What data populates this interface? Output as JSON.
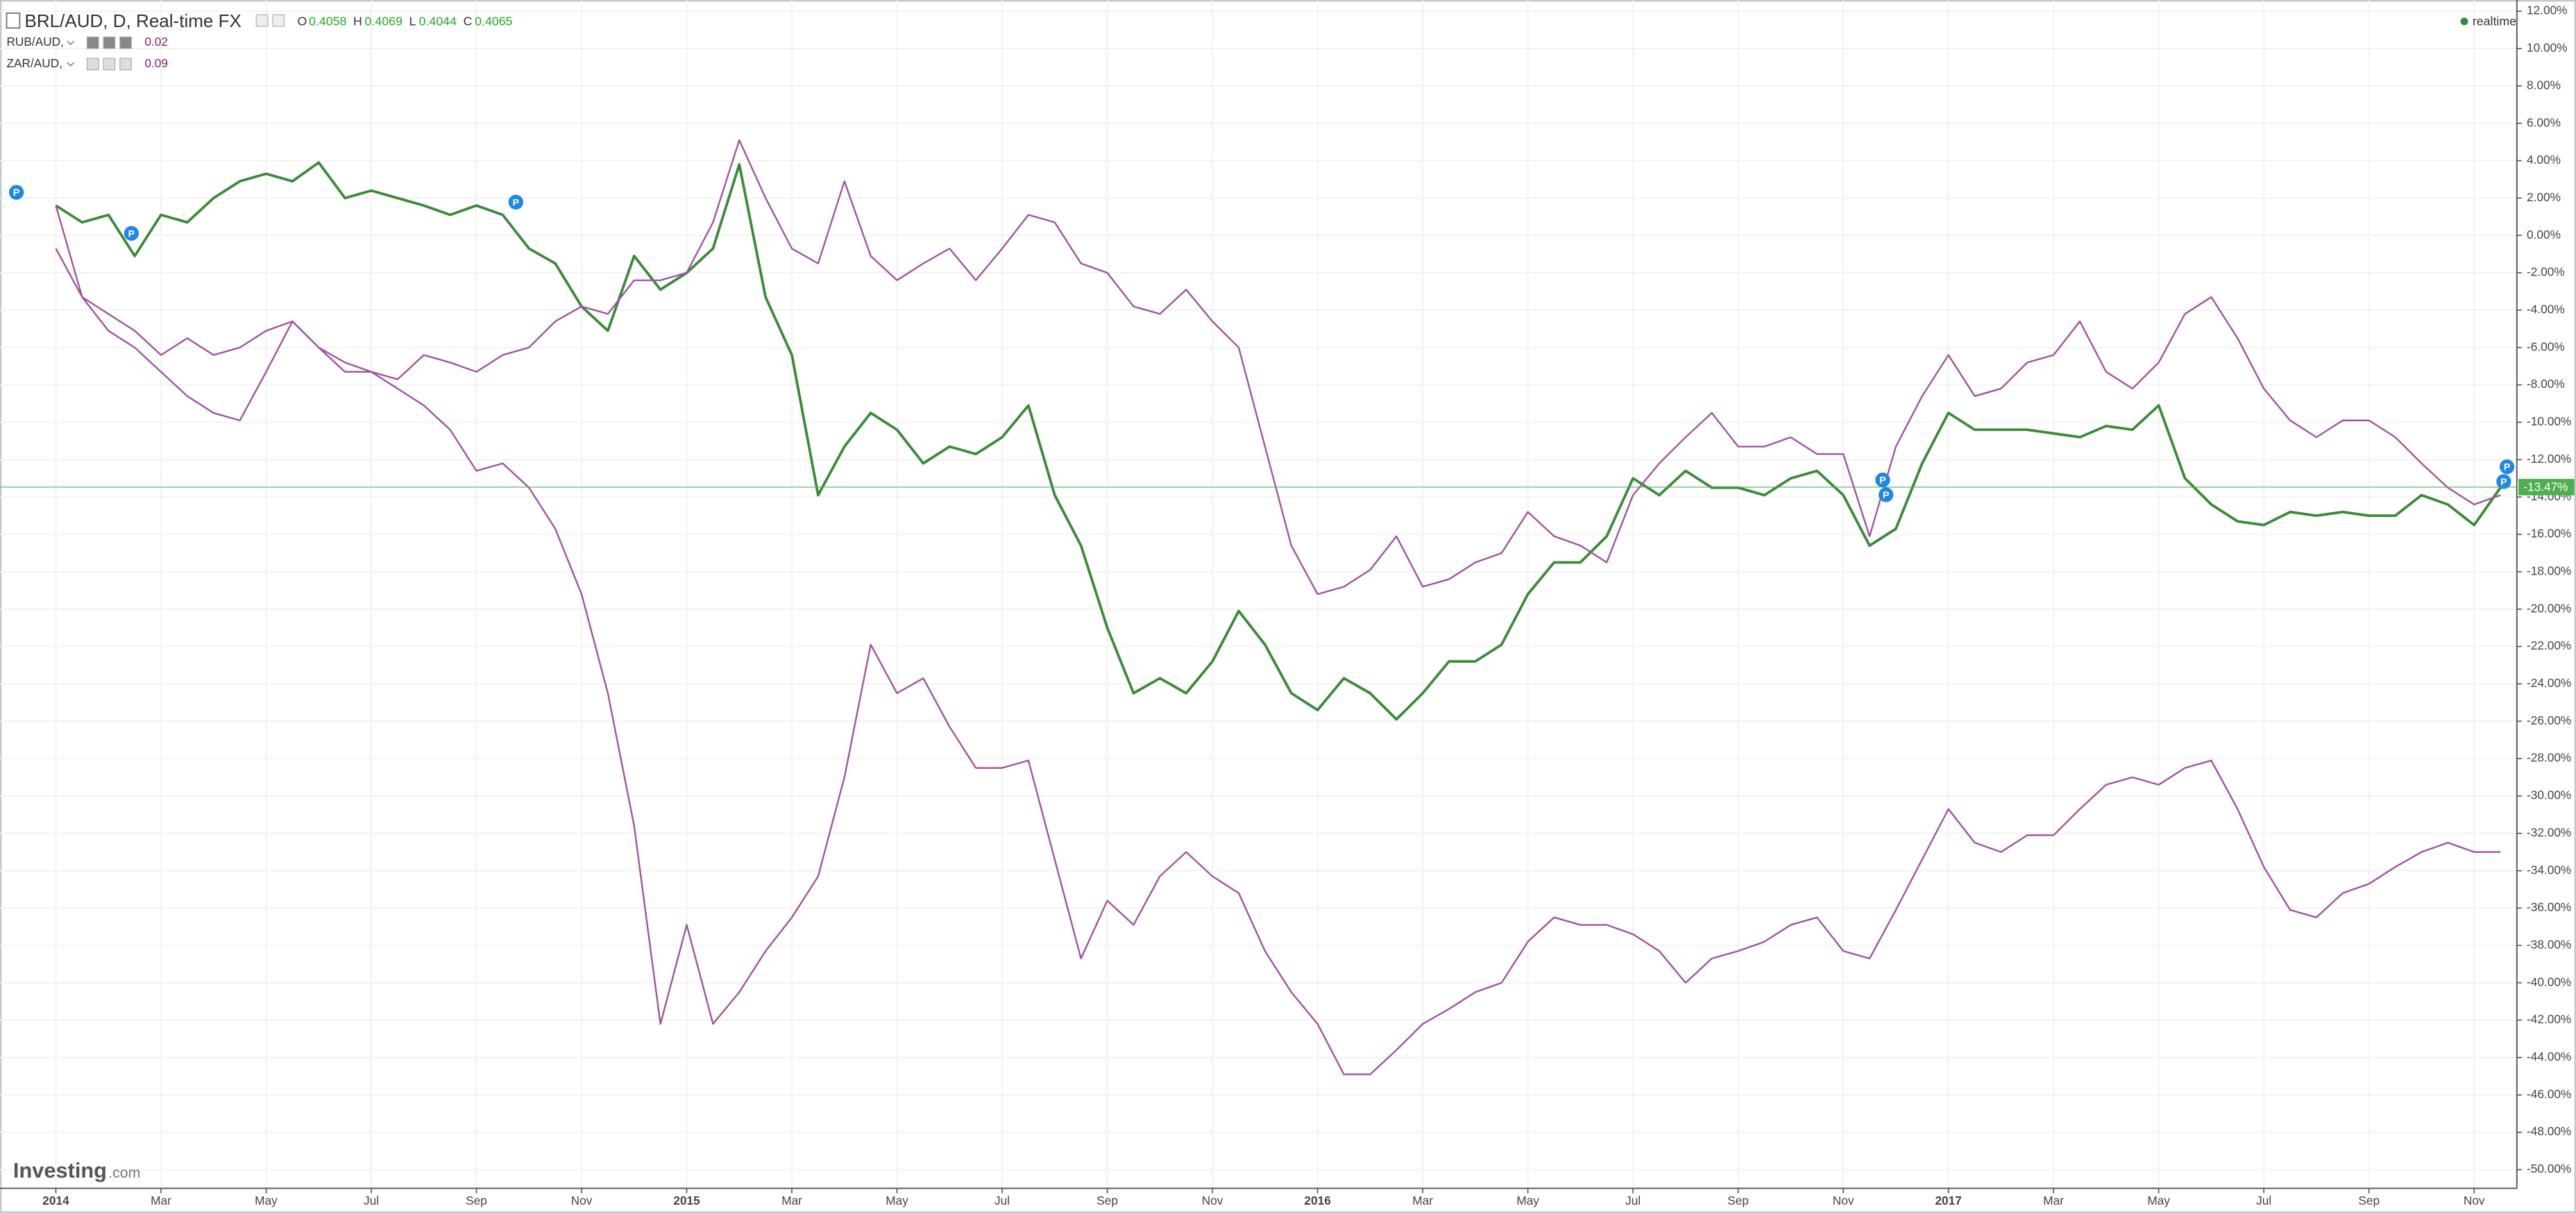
{
  "chart_data": {
    "type": "line",
    "header": {
      "title": "BRL/AUD, D, Real-time FX",
      "o_label": "O",
      "o_value": "0.4058",
      "h_label": "H",
      "h_value": "0.4069",
      "l_label": "L",
      "l_value": "0.4044",
      "c_label": "C",
      "c_value": "0.4065",
      "status": "realtime"
    },
    "studies": [
      {
        "name": "RUB/AUD,",
        "value": "0.02"
      },
      {
        "name": "ZAR/AUD,",
        "value": "0.09"
      }
    ],
    "logo_main": "Investing",
    "logo_suffix": ".com",
    "pin_label": "P",
    "last_value": -13.47,
    "last_label": "-13.47%",
    "last_color": "#4caf50",
    "categories": [
      "2014",
      null,
      null,
      null,
      "Mar",
      null,
      null,
      null,
      "May",
      null,
      null,
      null,
      "Jul",
      null,
      null,
      null,
      "Sep",
      null,
      null,
      null,
      "Nov",
      null,
      null,
      null,
      "2015",
      null,
      null,
      null,
      "Mar",
      null,
      null,
      null,
      "May",
      null,
      null,
      null,
      "Jul",
      null,
      null,
      null,
      "Sep",
      null,
      null,
      null,
      "Nov",
      null,
      null,
      null,
      "2016",
      null,
      null,
      null,
      "Mar",
      null,
      null,
      null,
      "May",
      null,
      null,
      null,
      "Jul",
      null,
      null,
      null,
      "Sep",
      null,
      null,
      null,
      "Nov",
      null,
      null,
      null,
      "2017",
      null,
      null,
      null,
      "Mar",
      null,
      null,
      null,
      "May",
      null,
      null,
      null,
      "Jul",
      null,
      null,
      null,
      "Sep",
      null,
      null,
      null,
      "Nov",
      null
    ],
    "series": [
      {
        "name": "BRL/AUD",
        "color": "#3b8a3b",
        "values": [
          1.6,
          0.7,
          1.1,
          -1.1,
          1.1,
          0.7,
          2.0,
          2.9,
          3.3,
          2.9,
          3.9,
          2.0,
          2.4,
          2.0,
          1.6,
          1.1,
          1.6,
          1.1,
          -0.7,
          -1.5,
          -3.8,
          -5.1,
          -1.1,
          -2.9,
          -2.0,
          -0.7,
          3.8,
          -3.3,
          -6.4,
          -13.9,
          -11.3,
          -9.5,
          -10.4,
          -12.2,
          -11.3,
          -11.7,
          -10.8,
          -9.1,
          -13.9,
          -16.6,
          -21.0,
          -24.5,
          -23.7,
          -24.5,
          -22.8,
          -20.1,
          -21.9,
          -24.5,
          -25.4,
          -23.7,
          -24.5,
          -25.9,
          -24.5,
          -22.8,
          -22.8,
          -21.9,
          -19.2,
          -17.5,
          -17.5,
          -16.1,
          -13.0,
          -13.9,
          -12.6,
          -13.5,
          -13.5,
          -13.9,
          -13.0,
          -12.6,
          -13.9,
          -16.6,
          -15.7,
          -12.2,
          -9.5,
          -10.4,
          -10.4,
          -10.4,
          -10.6,
          -10.8,
          -10.2,
          -10.4,
          -9.1,
          -13.0,
          -14.4,
          -15.3,
          -15.5,
          -14.8,
          -15.0,
          -14.8,
          -15.0,
          -15.0,
          -13.9,
          -14.4,
          -15.5,
          -13.5
        ]
      },
      {
        "name": "RUB/AUD",
        "color": "#a0529e",
        "values": [
          -0.7,
          -3.3,
          -5.1,
          -6.0,
          -7.3,
          -8.6,
          -9.5,
          -9.9,
          -7.3,
          -4.6,
          -6.0,
          -6.8,
          -7.3,
          -8.2,
          -9.1,
          -10.4,
          -12.6,
          -12.2,
          -13.5,
          -15.7,
          -19.2,
          -24.5,
          -31.6,
          -42.2,
          -36.9,
          -42.2,
          -40.5,
          -38.3,
          -36.5,
          -34.3,
          -29.0,
          -21.9,
          -24.5,
          -23.7,
          -26.3,
          -28.5,
          -28.5,
          -28.1,
          -33.4,
          -38.7,
          -35.6,
          -36.9,
          -34.3,
          -33.0,
          -34.3,
          -35.2,
          -38.3,
          -40.5,
          -42.2,
          -44.9,
          -44.9,
          -43.6,
          -42.2,
          -41.4,
          -40.5,
          -40.0,
          -37.8,
          -36.5,
          -36.9,
          -36.9,
          -37.4,
          -38.3,
          -40.0,
          -38.7,
          -38.3,
          -37.8,
          -36.9,
          -36.5,
          -38.3,
          -38.7,
          -36.1,
          -33.4,
          -30.7,
          -32.5,
          -33.0,
          -32.1,
          -32.1,
          -30.7,
          -29.4,
          -29.0,
          -29.4,
          -28.5,
          -28.1,
          -30.7,
          -33.8,
          -36.1,
          -36.5,
          -35.2,
          -34.7,
          -33.8,
          -33.0,
          -32.5,
          -33.0,
          -33.0
        ]
      },
      {
        "name": "ZAR/AUD",
        "color": "#a0529e",
        "values": [
          1.6,
          -3.3,
          -4.2,
          -5.1,
          -6.4,
          -5.5,
          -6.4,
          -6.0,
          -5.1,
          -4.6,
          -6.0,
          -7.3,
          -7.3,
          -7.7,
          -6.4,
          -6.8,
          -7.3,
          -6.4,
          -6.0,
          -4.6,
          -3.8,
          -4.2,
          -2.4,
          -2.4,
          -2.0,
          0.7,
          5.1,
          2.0,
          -0.7,
          -1.5,
          2.9,
          -1.1,
          -2.4,
          -1.5,
          -0.7,
          -2.4,
          -0.7,
          1.1,
          0.7,
          -1.5,
          -2.0,
          -3.8,
          -4.2,
          -2.9,
          -4.6,
          -6.0,
          -11.3,
          -16.6,
          -19.2,
          -18.8,
          -17.9,
          -16.1,
          -18.8,
          -18.4,
          -17.5,
          -17.0,
          -14.8,
          -16.1,
          -16.6,
          -17.5,
          -13.9,
          -12.2,
          -10.8,
          -9.5,
          -11.3,
          -11.3,
          -10.8,
          -11.7,
          -11.7,
          -16.1,
          -11.3,
          -8.6,
          -6.4,
          -8.6,
          -8.2,
          -6.8,
          -6.4,
          -4.6,
          -7.3,
          -8.2,
          -6.8,
          -4.2,
          -3.3,
          -5.5,
          -8.2,
          -9.9,
          -10.8,
          -9.9,
          -9.9,
          -10.8,
          -12.2,
          -13.5,
          -14.4,
          -13.9
        ]
      }
    ],
    "ylim": [
      -51,
      12.6
    ],
    "yticks": [
      {
        "value": 12,
        "label": "12.00%"
      },
      {
        "value": 10,
        "label": "10.00%"
      },
      {
        "value": 8,
        "label": "8.00%"
      },
      {
        "value": 6,
        "label": "6.00%"
      },
      {
        "value": 4,
        "label": "4.00%"
      },
      {
        "value": 2,
        "label": "2.00%"
      },
      {
        "value": 0,
        "label": "0.00%"
      },
      {
        "value": -2,
        "label": "-2.00%"
      },
      {
        "value": -4,
        "label": "-4.00%"
      },
      {
        "value": -6,
        "label": "-6.00%"
      },
      {
        "value": -8,
        "label": "-8.00%"
      },
      {
        "value": -10,
        "label": "-10.00%"
      },
      {
        "value": -12,
        "label": "-12.00%"
      },
      {
        "value": -14,
        "label": "-14.00%"
      },
      {
        "value": -16,
        "label": "-16.00%"
      },
      {
        "value": -18,
        "label": "-18.00%"
      },
      {
        "value": -20,
        "label": "-20.00%"
      },
      {
        "value": -22,
        "label": "-22.00%"
      },
      {
        "value": -24,
        "label": "-24.00%"
      },
      {
        "value": -26,
        "label": "-26.00%"
      },
      {
        "value": -28,
        "label": "-28.00%"
      },
      {
        "value": -30,
        "label": "-30.00%"
      },
      {
        "value": -32,
        "label": "-32.00%"
      },
      {
        "value": -34,
        "label": "-34.00%"
      },
      {
        "value": -36,
        "label": "-36.00%"
      },
      {
        "value": -38,
        "label": "-38.00%"
      },
      {
        "value": -40,
        "label": "-40.00%"
      },
      {
        "value": -42,
        "label": "-42.00%"
      },
      {
        "value": -44,
        "label": "-44.00%"
      },
      {
        "value": -46,
        "label": "-46.00%"
      },
      {
        "value": -48,
        "label": "-48.00%"
      },
      {
        "value": -50,
        "label": "-50.00%"
      }
    ],
    "grid": true
  }
}
